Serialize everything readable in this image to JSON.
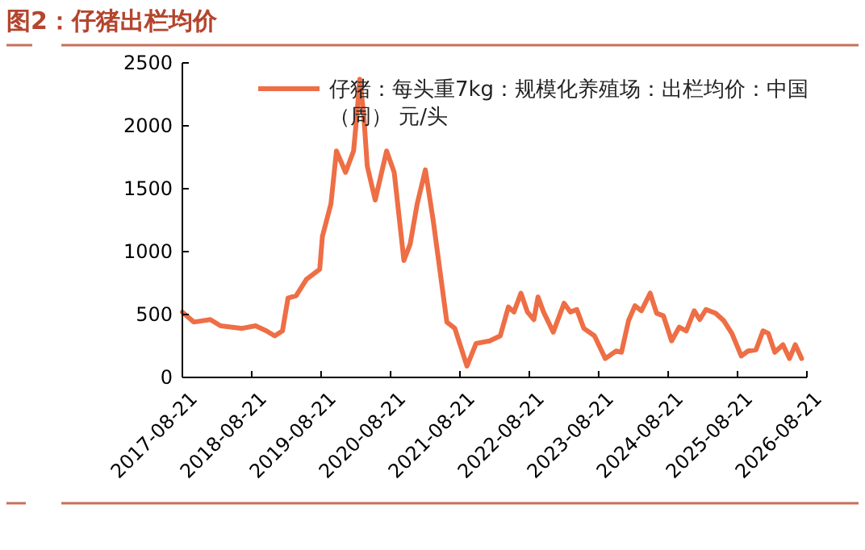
{
  "chart_data": {
    "type": "line",
    "title": "图2：仔猪出栏均价",
    "x": [
      "2017-08-21",
      "2017-10-20",
      "2018-01-15",
      "2018-03-10",
      "2018-07-01",
      "2018-09-10",
      "2018-11-06",
      "2018-12-20",
      "2019-01-30",
      "2019-02-28",
      "2019-04-12",
      "2019-06-05",
      "2019-08-14",
      "2019-08-28",
      "2019-10-12",
      "2019-11-10",
      "2019-12-28",
      "2020-02-08",
      "2020-02-24",
      "2020-03-12",
      "2020-04-01",
      "2020-04-20",
      "2020-06-01",
      "2020-07-31",
      "2020-09-09",
      "2020-10-30",
      "2020-12-02",
      "2021-01-08",
      "2021-02-20",
      "2021-04-02",
      "2021-06-13",
      "2021-07-25",
      "2021-09-27",
      "2021-11-14",
      "2022-01-24",
      "2022-03-21",
      "2022-05-03",
      "2022-06-01",
      "2022-07-08",
      "2022-08-11",
      "2022-09-14",
      "2022-10-06",
      "2022-11-04",
      "2022-12-25",
      "2023-02-20",
      "2023-03-25",
      "2023-04-28",
      "2023-06-04",
      "2023-07-30",
      "2023-09-25",
      "2023-11-21",
      "2023-12-19",
      "2024-01-25",
      "2024-02-28",
      "2024-04-02",
      "2024-05-18",
      "2024-06-21",
      "2024-07-27",
      "2024-09-08",
      "2024-10-18",
      "2024-11-24",
      "2025-01-05",
      "2025-02-03",
      "2025-03-08",
      "2025-04-28",
      "2025-06-10",
      "2025-07-22",
      "2025-09-10",
      "2025-10-15",
      "2025-11-26",
      "2026-01-02",
      "2026-01-30",
      "2026-03-05",
      "2026-04-17",
      "2026-05-21",
      "2026-06-21",
      "2026-07-24"
    ],
    "series": [
      {
        "name": "仔猪：每头重7kg：规模化养殖场：出栏均价：中国（周） 元/头",
        "color": "#ee6e45",
        "values": [
          520,
          440,
          460,
          410,
          390,
          410,
          370,
          330,
          370,
          630,
          650,
          780,
          860,
          1120,
          1380,
          1800,
          1630,
          1800,
          2060,
          2370,
          2100,
          1680,
          1410,
          1800,
          1630,
          930,
          1060,
          1380,
          1650,
          1250,
          440,
          390,
          90,
          270,
          290,
          330,
          560,
          520,
          670,
          520,
          460,
          640,
          520,
          360,
          590,
          520,
          540,
          390,
          330,
          150,
          210,
          200,
          450,
          570,
          530,
          670,
          510,
          490,
          290,
          400,
          370,
          530,
          460,
          540,
          510,
          450,
          350,
          170,
          210,
          220,
          370,
          350,
          200,
          260,
          150,
          260,
          150
        ]
      }
    ],
    "xlim": [
      "2017-08-21",
      "2026-08-21"
    ],
    "xticks": [
      "2017-08-21",
      "2018-08-21",
      "2019-08-21",
      "2020-08-21",
      "2021-08-21",
      "2022-08-21",
      "2023-08-21",
      "2024-08-21",
      "2025-08-21",
      "2026-08-21"
    ],
    "ylim": [
      0,
      2500
    ],
    "yticks": [
      0,
      500,
      1000,
      1500,
      2000,
      2500
    ],
    "grid": false,
    "legend": "top",
    "marker": "none",
    "line_style": "solid"
  }
}
